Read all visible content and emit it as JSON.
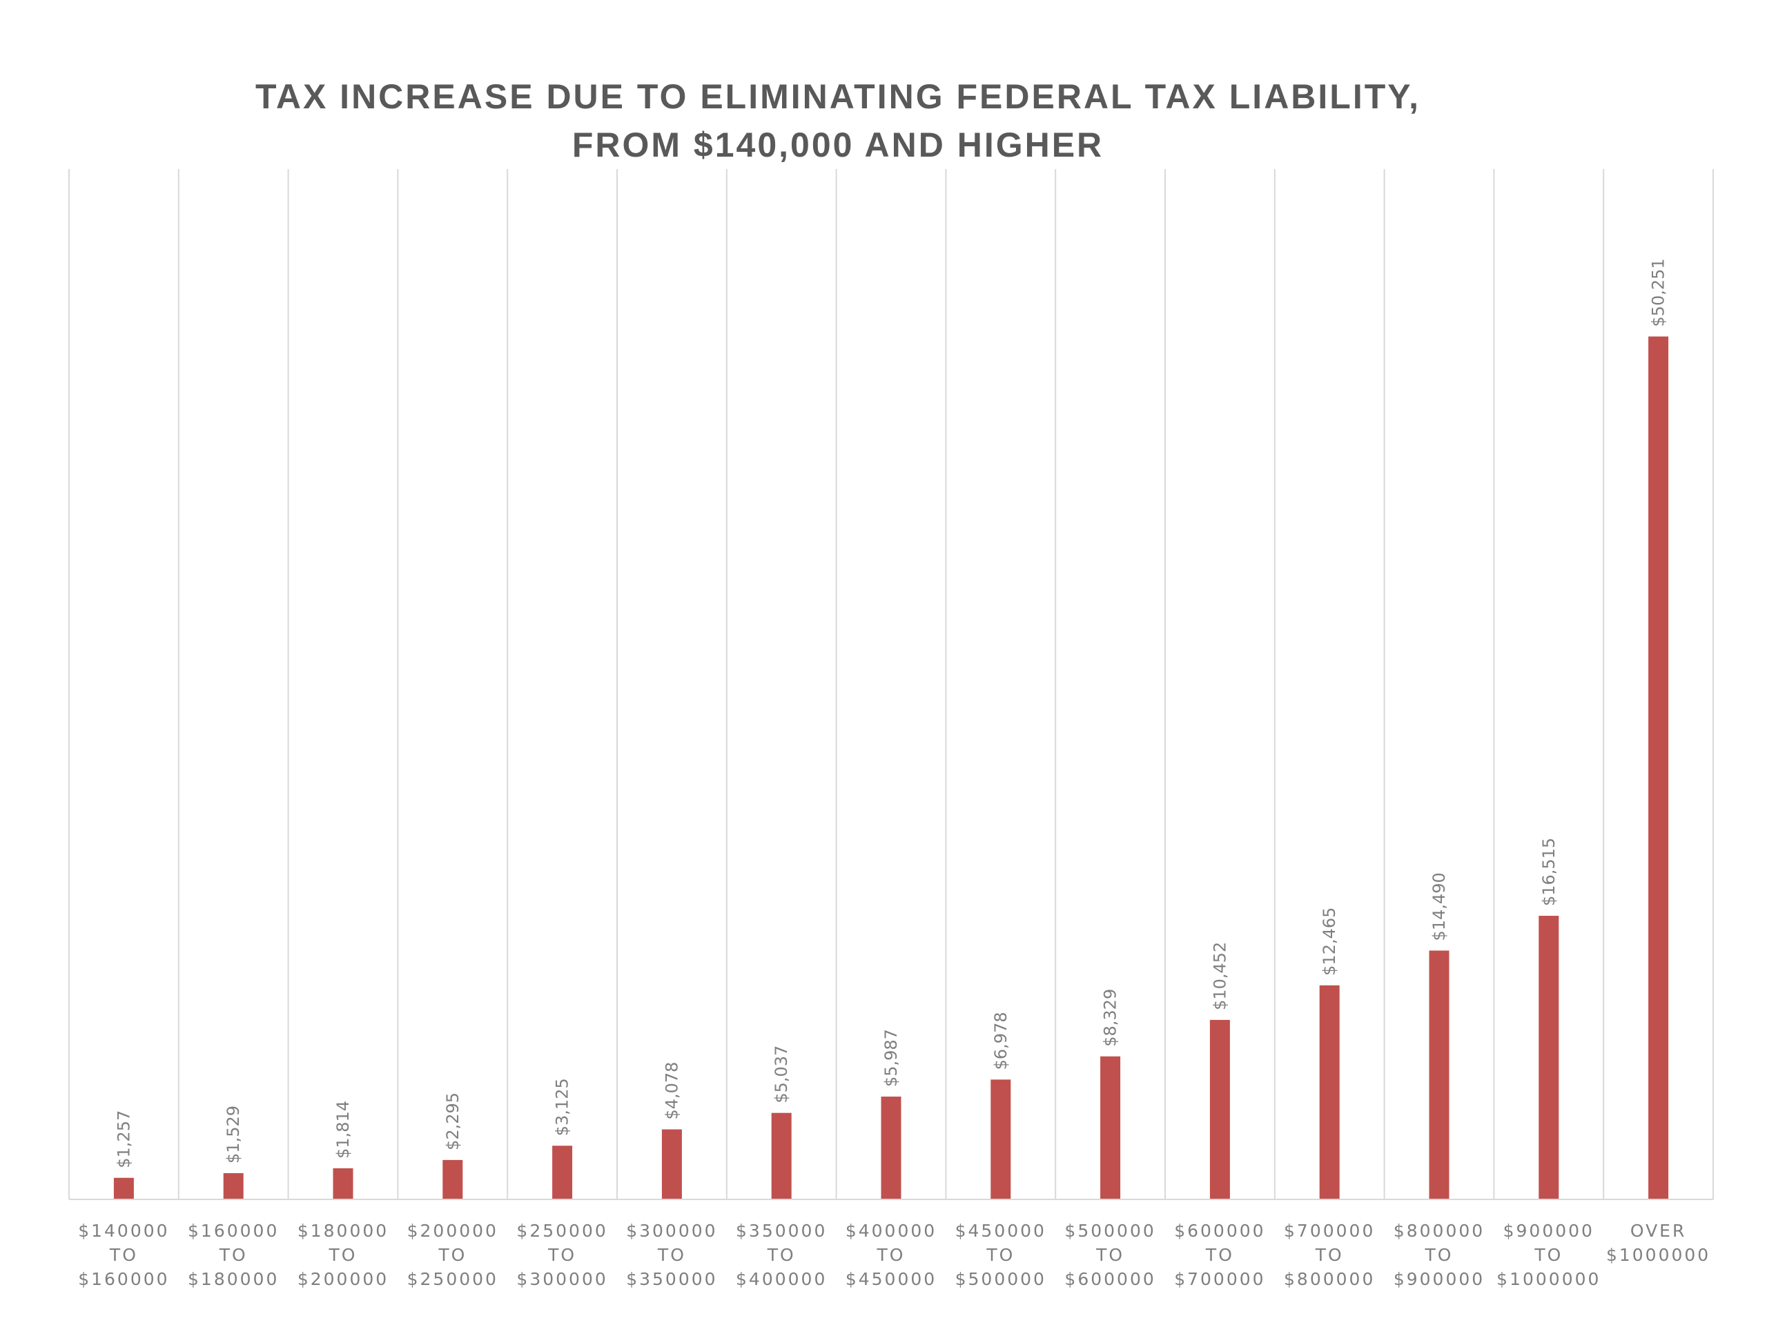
{
  "chart_data": {
    "type": "bar",
    "title_line1": "TAX INCREASE DUE TO ELIMINATING FEDERAL TAX LIABILITY,",
    "title_line2": "FROM $140,000 AND HIGHER",
    "xlabel": "",
    "ylabel": "",
    "grid": "vertical category separators",
    "legend": "none",
    "categories": [
      [
        "$140000",
        "TO",
        "$160000"
      ],
      [
        "$160000",
        "TO",
        "$180000"
      ],
      [
        "$180000",
        "TO",
        "$200000"
      ],
      [
        "$200000",
        "TO",
        "$250000"
      ],
      [
        "$250000",
        "TO",
        "$300000"
      ],
      [
        "$300000",
        "TO",
        "$350000"
      ],
      [
        "$350000",
        "TO",
        "$400000"
      ],
      [
        "$400000",
        "TO",
        "$450000"
      ],
      [
        "$450000",
        "TO",
        "$500000"
      ],
      [
        "$500000",
        "TO",
        "$600000"
      ],
      [
        "$600000",
        "TO",
        "$700000"
      ],
      [
        "$700000",
        "TO",
        "$800000"
      ],
      [
        "$800000",
        "TO",
        "$900000"
      ],
      [
        "$900000",
        "TO",
        "$1000000"
      ],
      [
        "OVER",
        "$1000000"
      ]
    ],
    "values": [
      1257,
      1529,
      1814,
      2295,
      3125,
      4078,
      5037,
      5987,
      6978,
      8329,
      10452,
      12465,
      14490,
      16515,
      50251
    ],
    "data_labels": [
      "$1,257",
      "$1,529",
      "$1,814",
      "$2,295",
      "$3,125",
      "$4,078",
      "$5,037",
      "$5,987",
      "$6,978",
      "$8,329",
      "$10,452",
      "$12,465",
      "$14,490",
      "$16,515",
      "$50,251"
    ],
    "ylim": [
      0,
      60000
    ],
    "colors": {
      "bar": "#c0504d",
      "grid": "#d9d9d9",
      "axis": "#d9d9d9",
      "label": "#7f7f7f",
      "title": "#595959"
    }
  }
}
